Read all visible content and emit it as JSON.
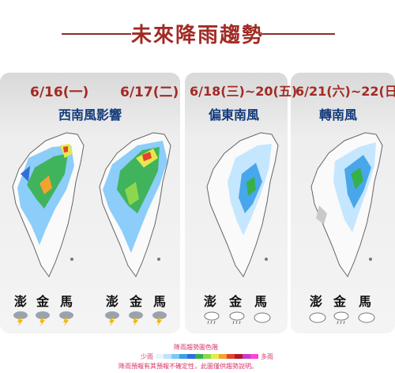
{
  "title": "未來降雨趨勢",
  "panels": [
    {
      "date": "6/16(一)",
      "date2": "6/17(二)",
      "subtitle": "西南風影響"
    },
    {
      "date": "6/18(三)~20(五)",
      "subtitle": "偏東南風"
    },
    {
      "date": "6/21(六)~22(日)",
      "subtitle": "轉南風"
    }
  ],
  "islands": [
    "澎",
    "金",
    "馬"
  ],
  "weather": {
    "p1": [
      "thunder-rain-icon",
      "thunder-rain-icon",
      "thunder-rain-icon"
    ],
    "p1b": [
      "thunder-rain-icon",
      "thunder-rain-icon",
      "thunder-rain-icon"
    ],
    "p2": [
      "cloud-rain-icon",
      "cloud-rain-icon",
      "cloud-icon"
    ],
    "p3": [
      "cloud-icon",
      "cloud-rain-icon",
      "cloud-icon"
    ]
  },
  "legend": {
    "title": "降雨趨勢圖色階",
    "min": "少雨",
    "max": "多雨",
    "colors": [
      "#e8f3ff",
      "#bfe3ff",
      "#7fc8f8",
      "#3aa0e8",
      "#2f6fd6",
      "#37b04a",
      "#8fd64f",
      "#e8e84a",
      "#f2a22e",
      "#e4422b",
      "#b5162a",
      "#c23fc9",
      "#ff3fe0"
    ],
    "note": "降雨預報有其預報不確定性，此圖僅供趨勢說明。"
  },
  "colors": {
    "title": "#a12b24",
    "subtitle": "#123a7a",
    "note": "#d7356a"
  }
}
